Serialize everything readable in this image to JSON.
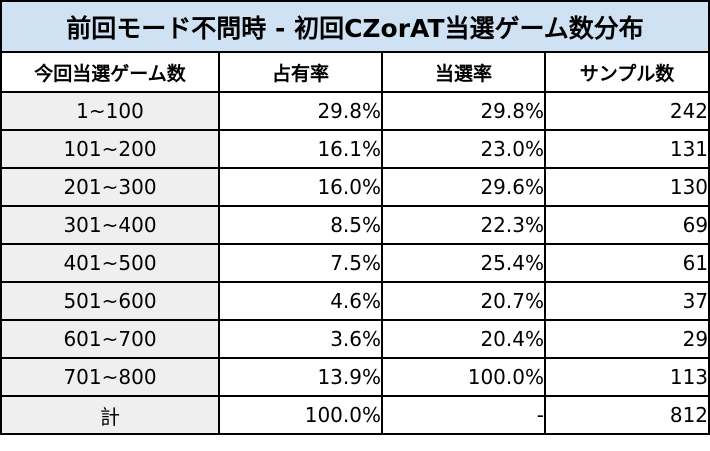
{
  "table": {
    "title": "前回モード不問時 - 初回CZorAT当選ゲーム数分布",
    "headers": [
      "今回当選ゲーム数",
      "占有率",
      "当選率",
      "サンプル数"
    ],
    "rows": [
      {
        "range": "1~100",
        "share": "29.8%",
        "win_rate": "29.8%",
        "samples": "242"
      },
      {
        "range": "101~200",
        "share": "16.1%",
        "win_rate": "23.0%",
        "samples": "131"
      },
      {
        "range": "201~300",
        "share": "16.0%",
        "win_rate": "29.6%",
        "samples": "130"
      },
      {
        "range": "301~400",
        "share": "8.5%",
        "win_rate": "22.3%",
        "samples": "69"
      },
      {
        "range": "401~500",
        "share": "7.5%",
        "win_rate": "25.4%",
        "samples": "61"
      },
      {
        "range": "501~600",
        "share": "4.6%",
        "win_rate": "20.7%",
        "samples": "37"
      },
      {
        "range": "601~700",
        "share": "3.6%",
        "win_rate": "20.4%",
        "samples": "29"
      },
      {
        "range": "701~800",
        "share": "13.9%",
        "win_rate": "100.0%",
        "samples": "113"
      },
      {
        "range": "計",
        "share": "100.0%",
        "win_rate": "-",
        "samples": "812"
      }
    ]
  },
  "colors": {
    "title_background": "#cfe2f3",
    "label_column_background": "#efefef",
    "border": "#000000"
  }
}
